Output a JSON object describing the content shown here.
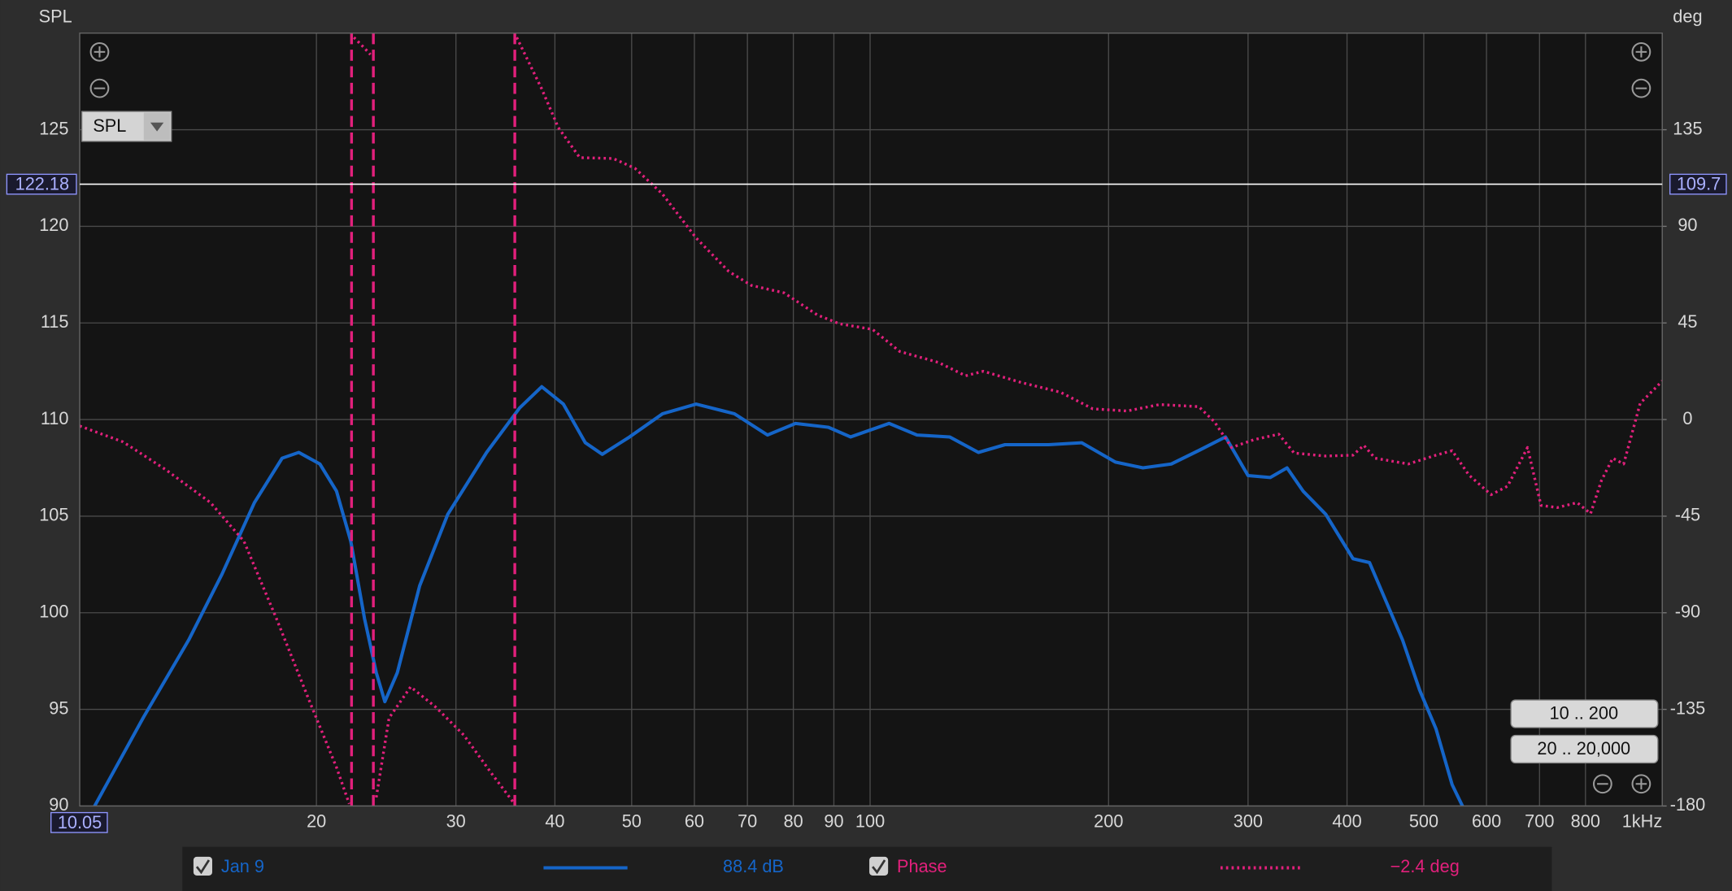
{
  "chart_data": {
    "type": "line",
    "xscale": "log",
    "ylabel": "SPL",
    "y2label": "deg",
    "xlim": [
      10.05,
      1000
    ],
    "xticks": [
      20,
      30,
      40,
      50,
      60,
      70,
      80,
      90,
      100,
      200,
      300,
      400,
      500,
      600,
      700,
      800,
      {
        "value": 1000,
        "label": "1kHz"
      }
    ],
    "ylim": [
      90,
      130
    ],
    "yticks": [
      90,
      95,
      100,
      105,
      110,
      115,
      120,
      125
    ],
    "y2lim": [
      -180,
      180
    ],
    "y2ticks": [
      -180,
      -135,
      -90,
      -45,
      0,
      45,
      90,
      135
    ],
    "grid": true,
    "cursor": {
      "y": 122.18,
      "y2": 109.7
    },
    "selector": "SPL",
    "buttons": [
      "10 .. 200",
      "20 .. 20,000"
    ],
    "series": [
      {
        "name": "Jan 9",
        "readout": "88.4 dB",
        "color": "#1565c8",
        "style": "solid",
        "x": [
          10.4,
          12.1,
          13.8,
          15.2,
          16.7,
          18.1,
          19.0,
          20.2,
          21.2,
          22.1,
          23.0,
          23.8,
          24.4,
          25.3,
          27.0,
          29.3,
          32.8,
          36.1,
          38.5,
          41.0,
          43.7,
          45.9,
          49.7,
          54.7,
          60.3,
          67.4,
          74.2,
          80.5,
          88.6,
          94.5,
          105.7,
          114.6,
          126,
          137,
          148,
          168,
          185,
          204,
          221,
          240,
          260,
          281,
          300,
          320,
          336,
          352,
          376,
          407,
          427,
          448,
          470,
          494,
          518,
          543,
          561
        ],
        "values": [
          89.7,
          94.6,
          98.6,
          102,
          105.7,
          108,
          108.3,
          107.7,
          106.3,
          103.7,
          99.7,
          96.9,
          95.4,
          96.9,
          101.4,
          105.1,
          108.3,
          110.6,
          111.7,
          110.8,
          108.8,
          108.2,
          109.1,
          110.3,
          110.8,
          110.3,
          109.2,
          109.8,
          109.6,
          109.1,
          109.8,
          109.2,
          109.1,
          108.3,
          108.7,
          108.7,
          108.8,
          107.8,
          107.5,
          107.7,
          108.4,
          109.1,
          107.1,
          107,
          107.5,
          106.3,
          105.1,
          102.8,
          102.6,
          100.6,
          98.6,
          96,
          94,
          91.1,
          89.9
        ]
      },
      {
        "name": "Phase",
        "readout": "−2.4 deg",
        "color": "#e2207c",
        "style": "dotted",
        "axis": "y2",
        "x": [
          10.05,
          11.4,
          12.9,
          14.7,
          16.2,
          17.8,
          19.6,
          21.2,
          22.0,
          22.3,
          23.0,
          23.4,
          23.8,
          24.7,
          26.3,
          28.3,
          30.7,
          33.3,
          35.4,
          35.8,
          38.5,
          40.4,
          43.0,
          47.4,
          50.5,
          54.7,
          60.3,
          66.3,
          70.8,
          77.9,
          85.8,
          91.5,
          100.7,
          109,
          122,
          132,
          139,
          155,
          174,
          191,
          211,
          232,
          260,
          272,
          286,
          305,
          328,
          343,
          376,
          407,
          420,
          434,
          478,
          518,
          543,
          570,
          608,
          638,
          676,
          703,
          737,
          781,
          812,
          838,
          866,
          894,
          938,
          984,
          1000
        ],
        "values": [
          -3,
          -10.4,
          -23.3,
          -38.7,
          -56.7,
          -92.6,
          -131.2,
          -162,
          -179,
          178,
          173,
          170,
          -176,
          -139,
          -124.5,
          -134,
          -147,
          -165,
          -178,
          178,
          154,
          136,
          122,
          121.6,
          117,
          105,
          84.6,
          69,
          62.5,
          59,
          48.7,
          44.6,
          42,
          31.7,
          26.6,
          20.4,
          22.5,
          17.3,
          12.7,
          5,
          4,
          7,
          6,
          -1,
          -13,
          -9.4,
          -6.8,
          -15.6,
          -17,
          -16.6,
          -12,
          -18,
          -20.7,
          -16.6,
          -14.5,
          -25.8,
          -35,
          -31,
          -13,
          -40,
          -41,
          -38.7,
          -43.8,
          -28.4,
          -18,
          -20.7,
          7.6,
          15.3,
          18
        ]
      }
    ]
  }
}
